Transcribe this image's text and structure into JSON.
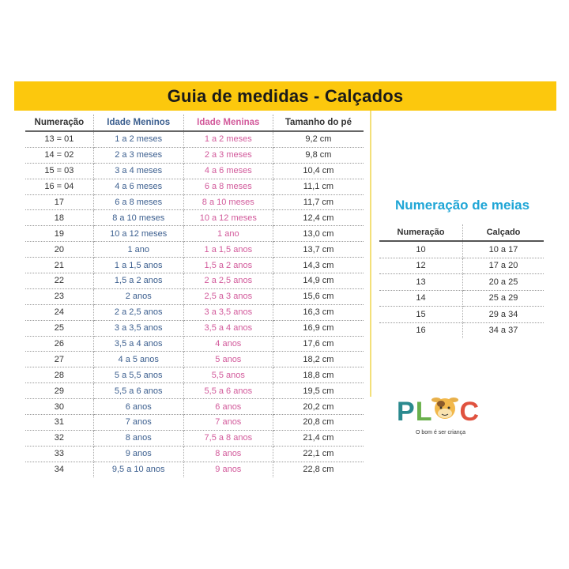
{
  "title": "Guia de medidas - Calçados",
  "shoes_table": {
    "headers": [
      "Numeração",
      "Idade Meninos",
      "Idade Meninas",
      "Tamanho do pé"
    ],
    "rows": [
      [
        "13 = 01",
        "1 a 2 meses",
        "1 a 2 meses",
        "9,2 cm"
      ],
      [
        "14 = 02",
        "2 a 3 meses",
        "2 a 3 meses",
        "9,8 cm"
      ],
      [
        "15 = 03",
        "3 a 4 meses",
        "4 a 6 meses",
        "10,4 cm"
      ],
      [
        "16 = 04",
        "4 a 6 meses",
        "6 a 8 meses",
        "11,1 cm"
      ],
      [
        "17",
        "6 a 8 meses",
        "8 a 10 meses",
        "11,7 cm"
      ],
      [
        "18",
        "8 a 10 meses",
        "10 a 12 meses",
        "12,4 cm"
      ],
      [
        "19",
        "10 a 12 meses",
        "1 ano",
        "13,0 cm"
      ],
      [
        "20",
        "1 ano",
        "1 a 1,5 anos",
        "13,7 cm"
      ],
      [
        "21",
        "1 a 1,5 anos",
        "1,5 a 2 anos",
        "14,3 cm"
      ],
      [
        "22",
        "1,5 a 2 anos",
        "2 a 2,5 anos",
        "14,9 cm"
      ],
      [
        "23",
        "2 anos",
        "2,5 a 3 anos",
        "15,6 cm"
      ],
      [
        "24",
        "2 a 2,5 anos",
        "3 a 3,5 anos",
        "16,3 cm"
      ],
      [
        "25",
        "3 a 3,5 anos",
        "3,5 a 4 anos",
        "16,9 cm"
      ],
      [
        "26",
        "3,5 a 4 anos",
        "4 anos",
        "17,6 cm"
      ],
      [
        "27",
        "4 a 5 anos",
        "5 anos",
        "18,2 cm"
      ],
      [
        "28",
        "5 a 5,5 anos",
        "5,5 anos",
        "18,8 cm"
      ],
      [
        "29",
        "5,5 a 6 anos",
        "5,5 a 6 anos",
        "19,5 cm"
      ],
      [
        "30",
        "6 anos",
        "6 anos",
        "20,2 cm"
      ],
      [
        "31",
        "7 anos",
        "7 anos",
        "20,8 cm"
      ],
      [
        "32",
        "8 anos",
        "7,5 a 8 anos",
        "21,4 cm"
      ],
      [
        "33",
        "9 anos",
        "8 anos",
        "22,1 cm"
      ],
      [
        "34",
        "9,5 a 10 anos",
        "9 anos",
        "22,8 cm"
      ]
    ]
  },
  "socks": {
    "title": "Numeração de meias",
    "headers": [
      "Numeração",
      "Calçado"
    ],
    "rows": [
      [
        "10",
        "10 a 17"
      ],
      [
        "12",
        "17 a 20"
      ],
      [
        "13",
        "20 a 25"
      ],
      [
        "14",
        "25 a 29"
      ],
      [
        "15",
        "29 a 34"
      ],
      [
        "16",
        "34 a 37"
      ]
    ]
  },
  "logo": {
    "text": "PLOC",
    "tagline": "O bom é ser criança"
  },
  "colors": {
    "banner": "#fcc80d",
    "boys": "#3c5f8f",
    "girls": "#d25a9b",
    "socks_title": "#20a6d6",
    "logo_p": "#2b8a8f",
    "logo_l": "#6ab04c",
    "logo_c": "#e0523f"
  }
}
